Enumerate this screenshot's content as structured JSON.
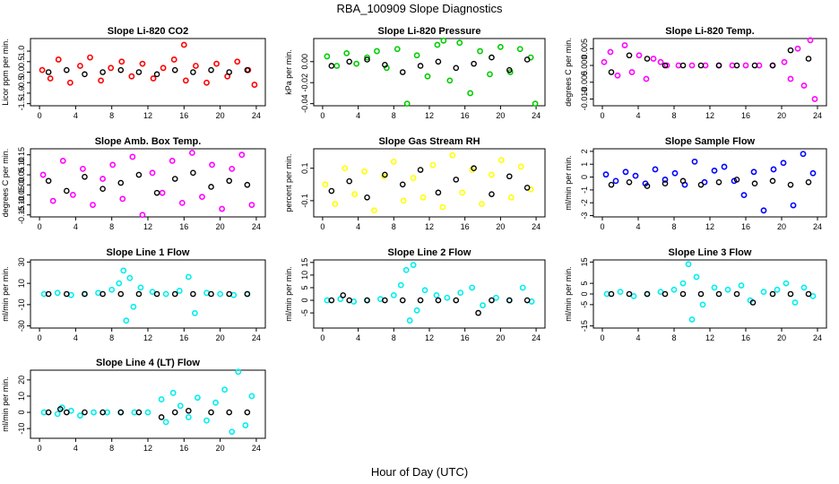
{
  "page": {
    "title": "RBA_100909  Slope Diagnostics",
    "xlabel": "Hour of Day (UTC)"
  },
  "colors": {
    "axis": "#000000",
    "black_series": "#000000"
  },
  "chart_data": [
    {
      "type": "scatter",
      "title": "Slope Li-820 CO2",
      "ylabel": "Licor ppm per min.",
      "color": "#ff0000",
      "xlim": [
        -1,
        25
      ],
      "ylim": [
        -1.6,
        1.6
      ],
      "xticks": [
        0,
        4,
        8,
        12,
        16,
        20,
        24
      ],
      "yticks": [
        -1.5,
        -1.0,
        -0.5,
        0.0,
        0.5,
        1.0
      ],
      "ytick_labels": [
        "-1.5",
        "-1.0",
        "-0.5",
        "0.0",
        "0.5",
        "1.0"
      ],
      "series": [
        {
          "name": "slope",
          "x": [
            0.3,
            1.2,
            2.1,
            3.4,
            4.5,
            5.6,
            6.8,
            7.9,
            9.1,
            10.2,
            11.4,
            12.6,
            13.7,
            14.9,
            16.0,
            16.2,
            17.3,
            18.5,
            19.6,
            20.8,
            21.9,
            23.1,
            23.8
          ],
          "y": [
            0.1,
            -0.3,
            0.6,
            -0.5,
            0.3,
            0.7,
            -0.4,
            0.2,
            0.5,
            -0.2,
            0.4,
            -0.3,
            0.2,
            0.6,
            1.3,
            -0.4,
            0.3,
            -0.5,
            0.4,
            -0.2,
            0.5,
            0.1,
            -0.6
          ]
        },
        {
          "name": "hourly",
          "color": "#000000",
          "x": [
            1,
            3,
            5,
            7,
            9,
            11,
            13,
            15,
            17,
            19,
            21,
            23
          ],
          "y": [
            0.0,
            0.1,
            -0.1,
            0.0,
            0.1,
            0.0,
            -0.1,
            0.1,
            0.0,
            0.1,
            0.0,
            0.1
          ]
        }
      ]
    },
    {
      "type": "scatter",
      "title": "Slope Li-820 Pressure",
      "ylabel": "kPa per min.",
      "color": "#00cc00",
      "xlim": [
        -1,
        25
      ],
      "ylim": [
        -0.042,
        0.022
      ],
      "xticks": [
        0,
        4,
        8,
        12,
        16,
        20,
        24
      ],
      "yticks": [
        -0.04,
        -0.02,
        0.0
      ],
      "ytick_labels": [
        "-0.04",
        "-0.02",
        "0.00"
      ],
      "series": [
        {
          "name": "slope",
          "x": [
            0.5,
            1.6,
            2.7,
            3.8,
            5.0,
            6.1,
            7.2,
            8.4,
            9.5,
            10.6,
            11.8,
            12.9,
            13.6,
            14.3,
            15.4,
            16.6,
            17.7,
            18.8,
            20.0,
            21.1,
            22.2,
            23.4,
            23.9
          ],
          "y": [
            0.005,
            -0.004,
            0.008,
            -0.002,
            0.004,
            0.01,
            -0.006,
            0.012,
            -0.04,
            0.006,
            -0.014,
            0.016,
            0.02,
            -0.018,
            0.018,
            -0.03,
            0.01,
            -0.012,
            0.014,
            -0.01,
            0.012,
            0.004,
            -0.04
          ]
        },
        {
          "name": "hourly",
          "color": "#000000",
          "x": [
            1,
            3,
            5,
            7,
            9,
            11,
            13,
            15,
            17,
            19,
            21,
            23
          ],
          "y": [
            -0.004,
            0.0,
            0.002,
            -0.003,
            -0.01,
            -0.004,
            0.0,
            -0.006,
            -0.002,
            0.004,
            -0.008,
            0.002
          ]
        }
      ]
    },
    {
      "type": "scatter",
      "title": "Slope Li-820 Temp.",
      "ylabel": "degrees C per min.",
      "color": "#ff00ff",
      "xlim": [
        -1,
        25
      ],
      "ylim": [
        -0.012,
        0.008
      ],
      "xticks": [
        0,
        4,
        8,
        12,
        16,
        20,
        24
      ],
      "yticks": [
        -0.01,
        -0.005,
        0.0,
        0.005
      ],
      "ytick_labels": [
        "-0.010",
        "-0.005",
        "0.000",
        "0.005"
      ],
      "series": [
        {
          "name": "slope",
          "x": [
            0.2,
            0.9,
            1.7,
            2.5,
            3.3,
            4.1,
            4.9,
            5.7,
            6.5,
            7.2,
            8.5,
            10.0,
            11.5,
            13.0,
            14.5,
            16.0,
            17.5,
            19.0,
            20.3,
            21.0,
            21.8,
            22.5,
            23.2,
            23.7
          ],
          "y": [
            0.001,
            0.004,
            -0.003,
            0.006,
            -0.002,
            0.003,
            -0.004,
            0.002,
            0.001,
            0.0,
            0.0,
            0.0,
            0.0,
            0.0,
            0.0,
            0.0,
            0.0,
            0.0,
            0.001,
            -0.004,
            0.005,
            -0.006,
            0.0075,
            -0.01
          ]
        },
        {
          "name": "hourly",
          "color": "#000000",
          "x": [
            1,
            3,
            5,
            7,
            9,
            11,
            13,
            15,
            17,
            19,
            21,
            23
          ],
          "y": [
            -0.002,
            0.003,
            0.002,
            0.0,
            0.0,
            0.0,
            0.0,
            0.0,
            0.0,
            0.0,
            0.0045,
            0.002
          ]
        }
      ]
    },
    {
      "type": "scatter",
      "title": "Slope Amb. Box Temp.",
      "ylabel": "degrees C per min.",
      "color": "#ff00ff",
      "xlim": [
        -1,
        25
      ],
      "ylim": [
        -0.16,
        0.18
      ],
      "xticks": [
        0,
        4,
        8,
        12,
        16,
        20,
        24
      ],
      "yticks": [
        -0.15,
        -0.1,
        -0.05,
        0.0,
        0.05,
        0.1,
        0.15
      ],
      "ytick_labels": [
        "-0.15",
        "-0.10",
        "-0.05",
        "0.00",
        "0.05",
        "0.10",
        "0.15"
      ],
      "series": [
        {
          "name": "slope",
          "x": [
            0.4,
            1.5,
            2.6,
            3.7,
            4.8,
            5.9,
            7.0,
            8.1,
            9.2,
            10.3,
            11.4,
            12.5,
            13.6,
            14.7,
            15.8,
            16.9,
            18.0,
            19.1,
            20.2,
            21.3,
            22.4,
            23.5
          ],
          "y": [
            0.05,
            -0.08,
            0.12,
            -0.05,
            0.08,
            -0.1,
            0.03,
            0.1,
            -0.07,
            0.14,
            -0.15,
            0.06,
            -0.04,
            0.12,
            -0.09,
            0.16,
            -0.06,
            0.1,
            -0.12,
            0.08,
            0.15,
            -0.1
          ]
        },
        {
          "name": "hourly",
          "color": "#000000",
          "x": [
            1,
            3,
            5,
            7,
            9,
            11,
            13,
            15,
            17,
            19,
            21,
            23
          ],
          "y": [
            0.02,
            -0.03,
            0.04,
            -0.02,
            0.01,
            0.05,
            -0.04,
            0.03,
            0.06,
            -0.01,
            0.02,
            0.0
          ]
        }
      ]
    },
    {
      "type": "scatter",
      "title": "Slope Gas Stream RH",
      "ylabel": "percent per min.",
      "color": "#ffff00",
      "xlim": [
        -1,
        25
      ],
      "ylim": [
        -0.2,
        0.22
      ],
      "xticks": [
        0,
        4,
        8,
        12,
        16,
        20,
        24
      ],
      "yticks": [
        -0.1,
        0.1
      ],
      "ytick_labels": [
        "-0.1",
        "0.1"
      ],
      "series": [
        {
          "name": "slope",
          "x": [
            0.3,
            1.4,
            2.5,
            3.6,
            4.7,
            5.8,
            6.9,
            8.0,
            9.1,
            10.2,
            11.3,
            12.4,
            13.5,
            14.6,
            15.7,
            16.8,
            17.9,
            19.0,
            20.1,
            21.2,
            22.3,
            23.4
          ],
          "y": [
            0.0,
            -0.12,
            0.1,
            -0.06,
            0.08,
            -0.16,
            0.05,
            0.14,
            -0.1,
            0.04,
            -0.08,
            0.12,
            -0.14,
            0.18,
            -0.05,
            0.09,
            -0.12,
            0.06,
            0.15,
            -0.08,
            0.11,
            -0.03
          ]
        },
        {
          "name": "hourly",
          "color": "#000000",
          "x": [
            1,
            3,
            5,
            7,
            9,
            11,
            13,
            15,
            17,
            19,
            21,
            23
          ],
          "y": [
            -0.04,
            0.02,
            -0.08,
            0.06,
            0.0,
            0.09,
            -0.05,
            0.03,
            0.1,
            -0.06,
            0.05,
            -0.02
          ]
        }
      ]
    },
    {
      "type": "scatter",
      "title": "Slope Sample Flow",
      "ylabel": "ml/min per min.",
      "color": "#0000ff",
      "xlim": [
        -1,
        25
      ],
      "ylim": [
        -3.1,
        2.2
      ],
      "xticks": [
        0,
        4,
        8,
        12,
        16,
        20,
        24
      ],
      "yticks": [
        -3,
        -2,
        -1,
        0,
        1,
        2
      ],
      "ytick_labels": [
        "-3",
        "-2",
        "-1",
        "0",
        "1",
        "2"
      ],
      "series": [
        {
          "name": "slope",
          "x": [
            0.4,
            1.5,
            2.6,
            3.7,
            4.8,
            5.9,
            7.0,
            8.1,
            9.2,
            10.3,
            11.4,
            12.5,
            13.6,
            14.7,
            15.8,
            16.9,
            18.0,
            19.1,
            20.2,
            21.3,
            22.4,
            23.5
          ],
          "y": [
            0.2,
            -0.3,
            0.4,
            0.1,
            -0.5,
            0.6,
            -0.2,
            0.3,
            -0.6,
            1.2,
            -0.4,
            0.5,
            0.8,
            -0.3,
            -1.4,
            0.4,
            -2.6,
            0.6,
            1.1,
            -2.2,
            1.8,
            0.3
          ]
        },
        {
          "name": "hourly",
          "color": "#000000",
          "x": [
            1,
            3,
            5,
            7,
            9,
            11,
            13,
            15,
            17,
            19,
            21,
            23
          ],
          "y": [
            -0.6,
            -0.4,
            -0.7,
            -0.5,
            -0.3,
            -0.6,
            -0.4,
            -0.2,
            -0.5,
            -0.3,
            -0.6,
            -0.4
          ]
        }
      ]
    },
    {
      "type": "scatter",
      "title": "Slope Line 1 Flow",
      "ylabel": "ml/min per min.",
      "color": "#00eeee",
      "xlim": [
        -1,
        25
      ],
      "ylim": [
        -32,
        32
      ],
      "xticks": [
        0,
        4,
        8,
        12,
        16,
        20,
        24
      ],
      "yticks": [
        -30,
        -10,
        10,
        30
      ],
      "ytick_labels": [
        "-30",
        "-10",
        "10",
        "30"
      ],
      "series": [
        {
          "name": "slope",
          "x": [
            0.5,
            2.0,
            3.5,
            5.0,
            6.5,
            8.0,
            8.8,
            9.3,
            9.6,
            10.0,
            10.4,
            11.2,
            12.5,
            14.0,
            15.5,
            16.5,
            17.2,
            18.5,
            20.0,
            21.5,
            23.0
          ],
          "y": [
            0,
            1,
            -1,
            0,
            1,
            4,
            10,
            22,
            -25,
            15,
            -12,
            6,
            2,
            0,
            3,
            16,
            -18,
            1,
            0,
            -1,
            0
          ]
        },
        {
          "name": "hourly",
          "color": "#000000",
          "x": [
            1,
            3,
            5,
            7,
            9,
            11,
            13,
            15,
            17,
            19,
            21,
            23
          ],
          "y": [
            0,
            0,
            0,
            0,
            0,
            0,
            0,
            0,
            0,
            0,
            0,
            0
          ]
        }
      ]
    },
    {
      "type": "scatter",
      "title": "Slope Line 2 Flow",
      "ylabel": "ml/min per min.",
      "color": "#00eeee",
      "xlim": [
        -1,
        25
      ],
      "ylim": [
        -11,
        16
      ],
      "xticks": [
        0,
        4,
        8,
        12,
        16,
        20,
        24
      ],
      "yticks": [
        -5,
        0,
        5,
        10,
        15
      ],
      "ytick_labels": [
        "-5",
        "0",
        "5",
        "10",
        "15"
      ],
      "series": [
        {
          "name": "slope",
          "x": [
            0.5,
            2.0,
            3.5,
            5.0,
            6.5,
            8.0,
            8.8,
            9.4,
            9.8,
            10.2,
            10.6,
            11.5,
            12.8,
            14.0,
            15.5,
            16.8,
            18.0,
            19.5,
            21.0,
            22.5,
            23.5
          ],
          "y": [
            0,
            0.5,
            -0.5,
            0,
            0.5,
            2,
            6,
            12,
            -8,
            14,
            -4,
            4,
            2,
            1,
            3,
            5,
            -2,
            1,
            0,
            5,
            -0.5
          ]
        },
        {
          "name": "hourly",
          "color": "#000000",
          "x": [
            1,
            2.3,
            3,
            5,
            7,
            9,
            11,
            13,
            15,
            17.5,
            19,
            21,
            23
          ],
          "y": [
            0,
            2,
            0,
            0,
            0,
            0,
            0,
            0,
            0,
            -5,
            0,
            0,
            0
          ]
        }
      ]
    },
    {
      "type": "scatter",
      "title": "Slope Line 3 Flow",
      "ylabel": "ml/min per min.",
      "color": "#00eeee",
      "xlim": [
        -1,
        25
      ],
      "ylim": [
        -16,
        16
      ],
      "xticks": [
        0,
        4,
        8,
        12,
        16,
        20,
        24
      ],
      "yticks": [
        -15,
        -5,
        0,
        5,
        15
      ],
      "ytick_labels": [
        "-15",
        "-5",
        "0",
        "5",
        "15"
      ],
      "series": [
        {
          "name": "slope",
          "x": [
            0.5,
            2.0,
            3.5,
            5.0,
            6.5,
            8.0,
            9.0,
            9.6,
            10.0,
            10.5,
            11.2,
            12.5,
            14.0,
            15.5,
            16.5,
            18.0,
            19.5,
            20.5,
            21.5,
            22.5,
            23.5
          ],
          "y": [
            0,
            1,
            -1,
            0,
            1,
            2,
            5,
            14,
            -12,
            8,
            -5,
            3,
            2,
            4,
            -3,
            1,
            2,
            5,
            -4,
            3,
            -1
          ]
        },
        {
          "name": "hourly",
          "color": "#000000",
          "x": [
            1,
            3,
            5,
            7,
            9,
            11,
            13,
            15,
            16.8,
            19,
            21,
            23
          ],
          "y": [
            0,
            0,
            0,
            0,
            0,
            0,
            0,
            0,
            -4,
            0,
            0,
            0
          ]
        }
      ]
    },
    {
      "type": "scatter",
      "title": "Slope Line 4 (LT) Flow",
      "ylabel": "ml/min per min.",
      "color": "#00eeee",
      "xlim": [
        -1,
        25
      ],
      "ylim": [
        -16,
        26
      ],
      "xticks": [
        0,
        4,
        8,
        12,
        16,
        20,
        24
      ],
      "yticks": [
        -10,
        0,
        10,
        20
      ],
      "ytick_labels": [
        "-10",
        "0",
        "10",
        "20"
      ],
      "series": [
        {
          "name": "slope",
          "x": [
            0.5,
            2.0,
            2.5,
            3.5,
            4.5,
            6.0,
            7.5,
            9.0,
            10.5,
            12.0,
            13.5,
            14.0,
            14.8,
            15.6,
            16.5,
            17.5,
            18.5,
            19.5,
            20.5,
            21.3,
            22.0,
            22.8,
            23.5
          ],
          "y": [
            0,
            -1,
            3,
            1,
            -2,
            0,
            0,
            0,
            0,
            0,
            8,
            -6,
            12,
            4,
            -3,
            9,
            -5,
            6,
            14,
            -12,
            25,
            -8,
            10
          ]
        },
        {
          "name": "hourly",
          "color": "#000000",
          "x": [
            1,
            2.3,
            3,
            5,
            7,
            9,
            11,
            13.5,
            15,
            16.5,
            19,
            21,
            23
          ],
          "y": [
            0,
            2,
            0,
            0,
            0,
            0,
            0,
            -3,
            0,
            1,
            0,
            0,
            0
          ]
        }
      ]
    }
  ]
}
